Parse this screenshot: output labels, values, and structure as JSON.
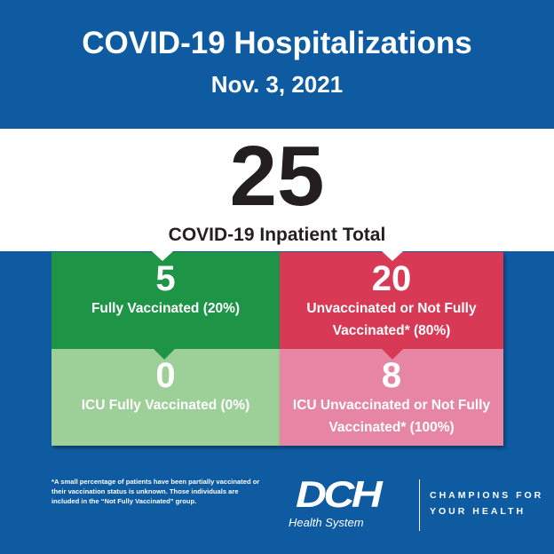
{
  "header": {
    "title": "COVID-19 Hospitalizations",
    "date": "Nov. 3, 2021"
  },
  "total": {
    "value": "25",
    "label": "COVID-19 Inpatient Total"
  },
  "boxes": [
    {
      "value": "5",
      "label": "Fully Vaccinated (20%)",
      "color": "#1e9447"
    },
    {
      "value": "20",
      "label": "Unvaccinated or Not Fully Vaccinated* (80%)",
      "color": "#d83a56"
    },
    {
      "value": "0",
      "label": "ICU Fully Vaccinated (0%)",
      "color": "#9dd098"
    },
    {
      "value": "8",
      "label": "ICU Unvaccinated or Not Fully Vaccinated* (100%)",
      "color": "#e686a4"
    }
  ],
  "footnote": "*A small percentage of patients have been partially vaccinated or their vaccination status is unknown. Those individuals are included in the “Not Fully Vaccinated” group.",
  "logo": {
    "mark": "DCH",
    "sub": "Health System",
    "tagline_1": "CHAMPIONS FOR",
    "tagline_2": "YOUR HEALTH"
  },
  "colors": {
    "background": "#0f5ba2"
  }
}
